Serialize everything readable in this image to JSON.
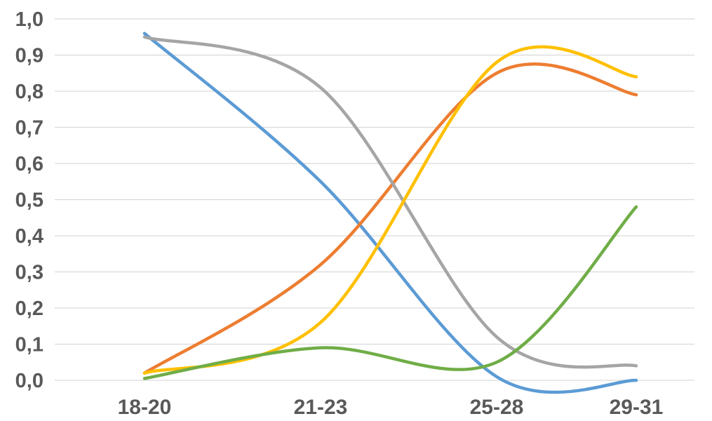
{
  "chart_data": {
    "type": "line",
    "smooth": true,
    "title": "",
    "xlabel": "",
    "ylabel": "",
    "categories": [
      "18-20",
      "21-23",
      "25-28",
      "29-31"
    ],
    "ylim": [
      0,
      1.0
    ],
    "y_ticks": [
      "0,0",
      "0,1",
      "0,2",
      "0,3",
      "0,4",
      "0,5",
      "0,6",
      "0,7",
      "0,8",
      "0,9",
      "1,0"
    ],
    "grid": "horizontal",
    "legend": "none",
    "series": [
      {
        "color": "#5b9bd5",
        "values": [
          0.96,
          0.55,
          0.01,
          0.0
        ]
      },
      {
        "color": "#ed7d31",
        "values": [
          0.02,
          0.32,
          0.85,
          0.79
        ]
      },
      {
        "color": "#a5a5a5",
        "values": [
          0.95,
          0.81,
          0.12,
          0.04
        ]
      },
      {
        "color": "#ffc000",
        "values": [
          0.02,
          0.16,
          0.88,
          0.84
        ]
      },
      {
        "color": "#70ad47",
        "values": [
          0.005,
          0.09,
          0.05,
          0.48
        ]
      }
    ]
  }
}
